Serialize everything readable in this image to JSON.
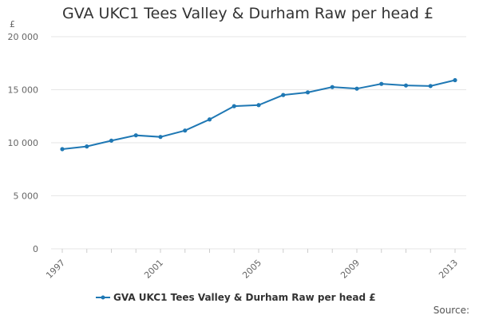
{
  "chart_data": {
    "type": "line",
    "title": "GVA UKC1 Tees Valley & Durham Raw per head £",
    "ylabel": "£",
    "xlabel": "",
    "x": [
      1997,
      1998,
      1999,
      2000,
      2001,
      2002,
      2003,
      2004,
      2005,
      2006,
      2007,
      2008,
      2009,
      2010,
      2011,
      2012,
      2013
    ],
    "xticks": [
      "1997",
      "2001",
      "2005",
      "2009",
      "2013"
    ],
    "xlim": [
      1997,
      2013
    ],
    "yticks": [
      "0",
      "5 000",
      "10 000",
      "15 000",
      "20 000"
    ],
    "ylim": [
      0,
      20000
    ],
    "grid": true,
    "legend": "bottom",
    "series": [
      {
        "name": "GVA UKC1 Tees Valley & Durham Raw per head £",
        "color": "#1f78b4",
        "values": [
          9400,
          9650,
          10200,
          10700,
          10550,
          11150,
          12200,
          13450,
          13550,
          14500,
          14750,
          15250,
          15100,
          15550,
          15400,
          15350,
          15900
        ]
      }
    ]
  },
  "source_label": "Source:",
  "icons": {
    "legend_marker": "line-dot-icon"
  }
}
